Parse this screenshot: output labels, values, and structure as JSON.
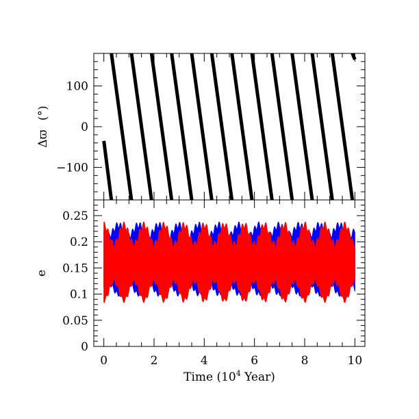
{
  "chart_data": [
    {
      "type": "scatter",
      "panel": "top",
      "ylabel": "Δϖ (°)",
      "ylabel_symbol": "Δϖ",
      "ylabel_unit": "(°)",
      "xlim": [
        -0.4,
        10.4
      ],
      "ylim": [
        -180,
        180
      ],
      "yticks": [
        -100,
        0,
        100
      ],
      "ytick_labels": [
        "−100",
        "0",
        "100"
      ],
      "series": [
        {
          "color": "#000000",
          "description_of_shape": "circulating angle, sawtooth decreasing from 180 to -180",
          "segments": [
            {
              "x": [
                0.0,
                0.3
              ],
              "y": [
                -35,
                -180
              ]
            },
            {
              "x": [
                0.3,
                1.1
              ],
              "y": [
                180,
                -180
              ]
            },
            {
              "x": [
                1.1,
                1.9
              ],
              "y": [
                180,
                -180
              ]
            },
            {
              "x": [
                1.9,
                2.7
              ],
              "y": [
                180,
                -180
              ]
            },
            {
              "x": [
                2.7,
                3.5
              ],
              "y": [
                180,
                -180
              ]
            },
            {
              "x": [
                3.5,
                4.3
              ],
              "y": [
                180,
                -180
              ]
            },
            {
              "x": [
                4.3,
                5.1
              ],
              "y": [
                180,
                -180
              ]
            },
            {
              "x": [
                5.1,
                5.9
              ],
              "y": [
                180,
                -180
              ]
            },
            {
              "x": [
                5.9,
                6.7
              ],
              "y": [
                180,
                -180
              ]
            },
            {
              "x": [
                6.7,
                7.5
              ],
              "y": [
                180,
                -180
              ]
            },
            {
              "x": [
                7.5,
                8.3
              ],
              "y": [
                180,
                -180
              ]
            },
            {
              "x": [
                8.3,
                9.1
              ],
              "y": [
                180,
                -180
              ]
            },
            {
              "x": [
                9.1,
                9.9
              ],
              "y": [
                180,
                -180
              ]
            },
            {
              "x": [
                9.9,
                10.0
              ],
              "y": [
                180,
                165
              ]
            }
          ]
        }
      ]
    },
    {
      "type": "area",
      "panel": "bottom",
      "xlabel": "Time (10⁴ Year)",
      "xlabel_prefix": "Time (10",
      "xlabel_exp": "4",
      "xlabel_suffix": " Year)",
      "ylabel": "e",
      "xlim": [
        -0.4,
        10.4
      ],
      "ylim": [
        0,
        0.28
      ],
      "xticks": [
        0,
        2,
        4,
        6,
        8,
        10
      ],
      "xtick_labels": [
        "0",
        "2",
        "4",
        "6",
        "8",
        "10"
      ],
      "yticks": [
        0,
        0.05,
        0.1,
        0.15,
        0.2,
        0.25
      ],
      "ytick_labels": [
        "0",
        "0.05",
        "0.1",
        "0.15",
        "0.2",
        "0.25"
      ],
      "series": [
        {
          "color": "#0000ff",
          "description_of_shape": "eccentricity envelope oscillating between about 0.10 and 0.23",
          "x_range": [
            0,
            10
          ],
          "envelope_mid": 0.166,
          "envelope_amplitude_min": 0.045,
          "envelope_amplitude_max": 0.066,
          "modulation_period": 0.8
        },
        {
          "color": "#ff0000",
          "description_of_shape": "eccentricity envelope oscillating between about 0.09 and 0.23",
          "x_range": [
            0,
            10
          ],
          "envelope_mid": 0.16,
          "envelope_amplitude_min": 0.035,
          "envelope_amplitude_max": 0.072,
          "modulation_period": 0.8
        }
      ]
    }
  ]
}
